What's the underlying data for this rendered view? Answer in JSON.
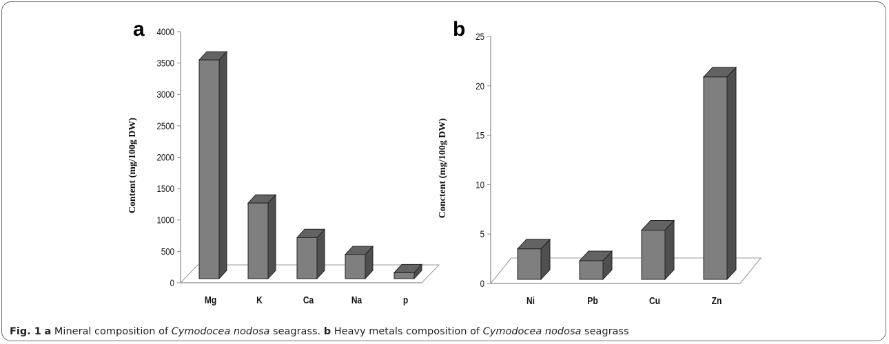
{
  "chart_data": [
    {
      "type": "bar",
      "panel_letter": "a",
      "categories": [
        "Mg",
        "K",
        "Ca",
        "Na",
        "p"
      ],
      "values": [
        3550,
        1270,
        720,
        450,
        160
      ],
      "ylabel": "Content (mg/100g DW)",
      "ylim": [
        0,
        4000
      ],
      "yticks": [
        0,
        500,
        1000,
        1500,
        2000,
        2500,
        3000,
        3500,
        4000
      ],
      "grid": false,
      "bar_color": "#7f7f7f"
    },
    {
      "type": "bar",
      "panel_letter": "b",
      "categories": [
        "Ni",
        "Pb",
        "Cu",
        "Zn"
      ],
      "values": [
        3.5,
        2.3,
        5.4,
        20.9
      ],
      "ylabel": "Conctent (mg/100g DW)",
      "ylim": [
        0,
        25
      ],
      "yticks": [
        0,
        5,
        10,
        15,
        20,
        25
      ],
      "grid": false,
      "bar_color": "#7f7f7f"
    }
  ],
  "caption": {
    "fig_label": "Fig. 1",
    "a_letter": "a",
    "a_text_1": " Mineral composition of ",
    "a_species": "Cymodocea nodosa",
    "a_text_2": " seagrass. ",
    "b_letter": "b",
    "b_text_1": " Heavy metals composition of ",
    "b_species": "Cymodocea nodosa",
    "b_text_2": " seagrass"
  }
}
